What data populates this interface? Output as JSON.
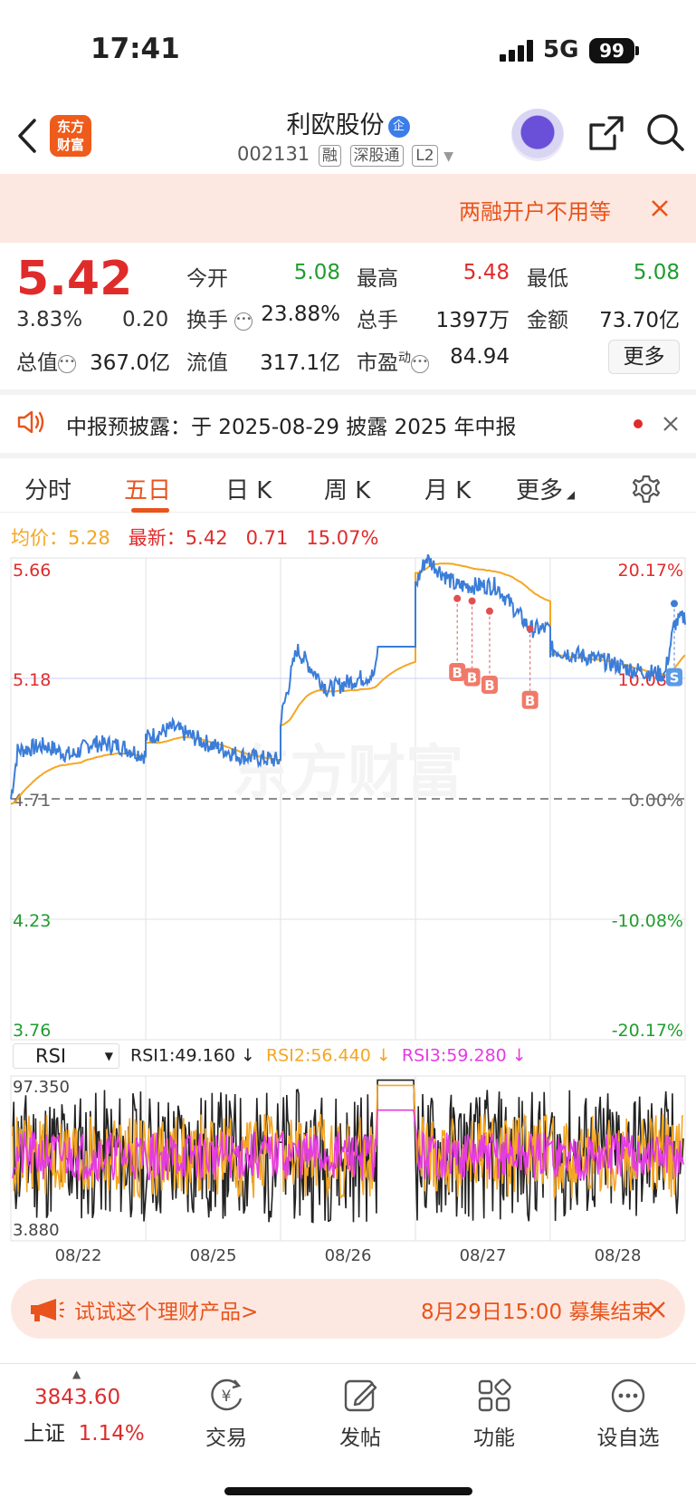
{
  "status_bar": {
    "time": "17:41",
    "network": "5G",
    "battery": "99"
  },
  "header": {
    "logo_text": "东方\n财富",
    "stock_name": "利欧股份",
    "name_badge": "企",
    "stock_code": "002131",
    "tags": [
      "融",
      "深股通",
      "L2"
    ]
  },
  "promo": {
    "text": "两融开户不用等"
  },
  "quote": {
    "price": "5.42",
    "change_pct": "3.83%",
    "change_amt": "0.20",
    "fields": [
      {
        "label": "今开",
        "value": "5.08",
        "color": "#1f9d2f"
      },
      {
        "label": "最高",
        "value": "5.48",
        "color": "#e02b2b"
      },
      {
        "label": "最低",
        "value": "5.08",
        "color": "#1f9d2f"
      },
      {
        "label": "换手",
        "value": "23.88%",
        "color": "#222"
      },
      {
        "label": "总手",
        "value": "1397万",
        "color": "#222"
      },
      {
        "label": "金额",
        "value": "73.70亿",
        "color": "#222"
      },
      {
        "label": "总值",
        "value": "367.0亿",
        "color": "#222"
      },
      {
        "label": "流值",
        "value": "317.1亿",
        "color": "#222"
      },
      {
        "label": "市盈",
        "value": "84.94",
        "color": "#222"
      }
    ],
    "pe_superscript": "动",
    "more_label": "更多"
  },
  "notice": {
    "text": "中报预披露：于 2025-08-29 披露 2025 年中报"
  },
  "tabs": [
    "分时",
    "五日",
    "日 K",
    "周 K",
    "月 K",
    "更多"
  ],
  "active_tab": 1,
  "legend": {
    "avg_label": "均价：",
    "avg_value": "5.28",
    "latest_label": "最新：",
    "latest_value": "5.42",
    "change_amt": "0.71",
    "change_pct": "15.07%"
  },
  "watermark": "东方财富",
  "chart_data": [
    {
      "type": "line",
      "x": [
        "08/22",
        "08/25",
        "08/26",
        "08/27",
        "08/28"
      ],
      "series": [],
      "y_ticks_left": [
        "5.66",
        "5.18",
        "4.71",
        "4.23",
        "3.76"
      ],
      "y_ticks_right": [
        "20.17%",
        "10.08%",
        "0.00%",
        "-10.08%",
        "-20.17%"
      ],
      "ylim": [
        3.76,
        5.66
      ],
      "baseline": 4.71,
      "colors": {
        "price": "#3b7dd8",
        "avg": "#f5a623"
      },
      "trade_markers": [
        "B",
        "B",
        "B",
        "B",
        "S"
      ],
      "grid": true
    },
    {
      "type": "line",
      "indicator": "RSI",
      "ylim": [
        3.88,
        97.35
      ],
      "y_ticks": [
        "97.350",
        "3.880"
      ],
      "series": [
        {
          "name": "RSI1",
          "last": "49.160",
          "arrow": "↓",
          "color": "#222222"
        },
        {
          "name": "RSI2",
          "last": "56.440",
          "arrow": "↓",
          "color": "#f5a623"
        },
        {
          "name": "RSI3",
          "last": "59.280",
          "arrow": "↓",
          "color": "#e43be4"
        }
      ],
      "x_labels": [
        "08/22",
        "08/25",
        "08/26",
        "08/27",
        "08/28"
      ]
    }
  ],
  "rsi_select": "RSI",
  "banner": {
    "left_text": "试试这个理财产品>",
    "right_text": "8月29日15:00 募集结束"
  },
  "nav": {
    "index_value": "3843.60",
    "index_name": "上证",
    "index_pct": "1.14%",
    "items": [
      "交易",
      "发帖",
      "功能",
      "设自选"
    ]
  }
}
